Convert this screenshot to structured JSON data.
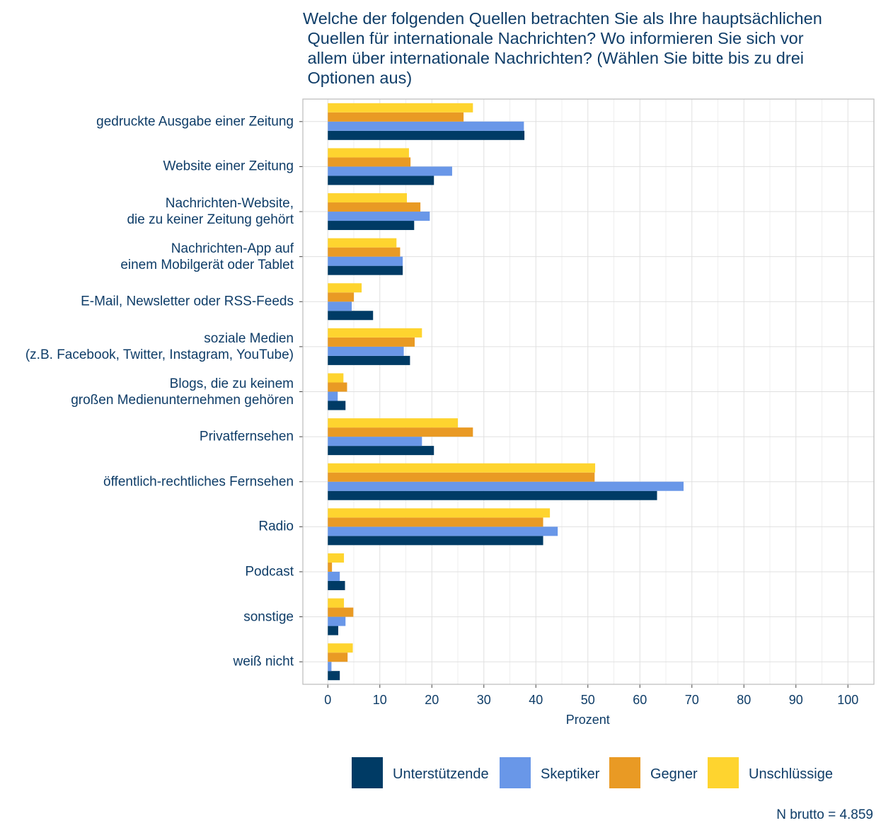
{
  "chart_data": {
    "type": "bar",
    "orientation": "horizontal",
    "title": "Welche der folgenden Quellen betrachten Sie als Ihre hauptsächlichen\n Quellen für internationale Nachrichten? Wo informieren Sie sich vor\n allem über internationale Nachrichten? (Wählen Sie bitte bis zu drei\n Optionen aus)",
    "xlabel": "Prozent",
    "note": "N brutto = 4.859",
    "categories": [
      "gedruckte Ausgabe einer Zeitung",
      "Website einer Zeitung",
      "Nachrichten-Website,\ndie zu keiner Zeitung gehört",
      "Nachrichten-App auf\neinem Mobilgerät oder Tablet",
      "E-Mail, Newsletter oder RSS-Feeds",
      "soziale Medien\n(z.B. Facebook, Twitter, Instagram, YouTube)",
      "Blogs, die zu keinem\ngroßen Medienunternehmen gehören",
      "Privatfernsehen",
      "öffentlich-rechtliches Fernsehen",
      "Radio",
      "Podcast",
      "sonstige",
      "weiß nicht"
    ],
    "series": [
      {
        "name": "Unterstützende",
        "color": "#003b65",
        "values": [
          37.8,
          20.4,
          16.6,
          14.4,
          8.7,
          15.8,
          3.4,
          20.4,
          63.3,
          41.4,
          3.3,
          2.0,
          2.3
        ]
      },
      {
        "name": "Skeptiker",
        "color": "#6997e8",
        "values": [
          37.7,
          23.9,
          19.6,
          14.4,
          4.6,
          14.6,
          1.9,
          18.1,
          68.4,
          44.2,
          2.3,
          3.4,
          0.7
        ]
      },
      {
        "name": "Gegner",
        "color": "#e99a24",
        "values": [
          26.1,
          15.9,
          17.8,
          13.9,
          5.0,
          16.7,
          3.7,
          27.9,
          51.3,
          41.4,
          0.8,
          4.9,
          3.8
        ]
      },
      {
        "name": "Unschlüssige",
        "color": "#fed42f",
        "values": [
          27.9,
          15.6,
          15.2,
          13.2,
          6.5,
          18.1,
          3.0,
          25.0,
          51.4,
          42.7,
          3.1,
          3.1,
          4.8
        ]
      }
    ],
    "xlim": [
      -4.8,
      105
    ],
    "xticks": [
      0,
      10,
      20,
      30,
      40,
      50,
      60,
      70,
      80,
      90,
      100
    ],
    "grid": true,
    "legend": "bottom"
  }
}
